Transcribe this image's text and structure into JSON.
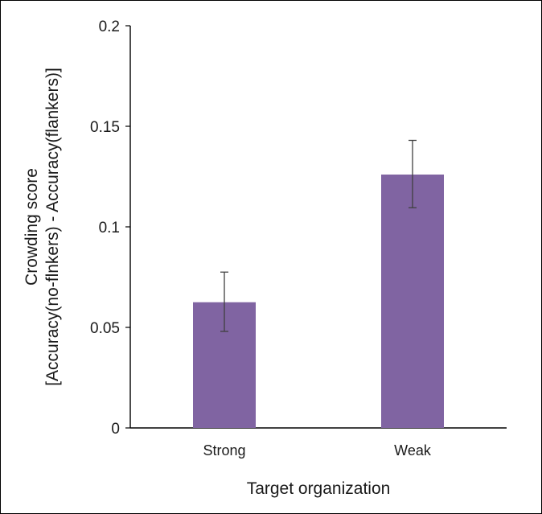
{
  "chart_data": {
    "type": "bar",
    "categories": [
      "Strong",
      "Weak"
    ],
    "values": [
      0.0625,
      0.126
    ],
    "error_low": [
      0.048,
      0.1095
    ],
    "error_high": [
      0.0775,
      0.143
    ],
    "title": "",
    "xlabel": "Target organization",
    "ylabel_line1": "Crowding score",
    "ylabel_line2": "[Accuracy(no-flnkers) - Accuracy(flankers)]",
    "ylim": [
      0,
      0.2
    ],
    "yticks": [
      0,
      0.05,
      0.1,
      0.15,
      0.2
    ],
    "ytick_labels": [
      "0",
      "0.05",
      "0.1",
      "0.15",
      "0.2"
    ],
    "grid": false,
    "legend": "none",
    "bar_color": "#8064a2",
    "errorbar_color": "#404040",
    "axis_color": "#000000"
  }
}
